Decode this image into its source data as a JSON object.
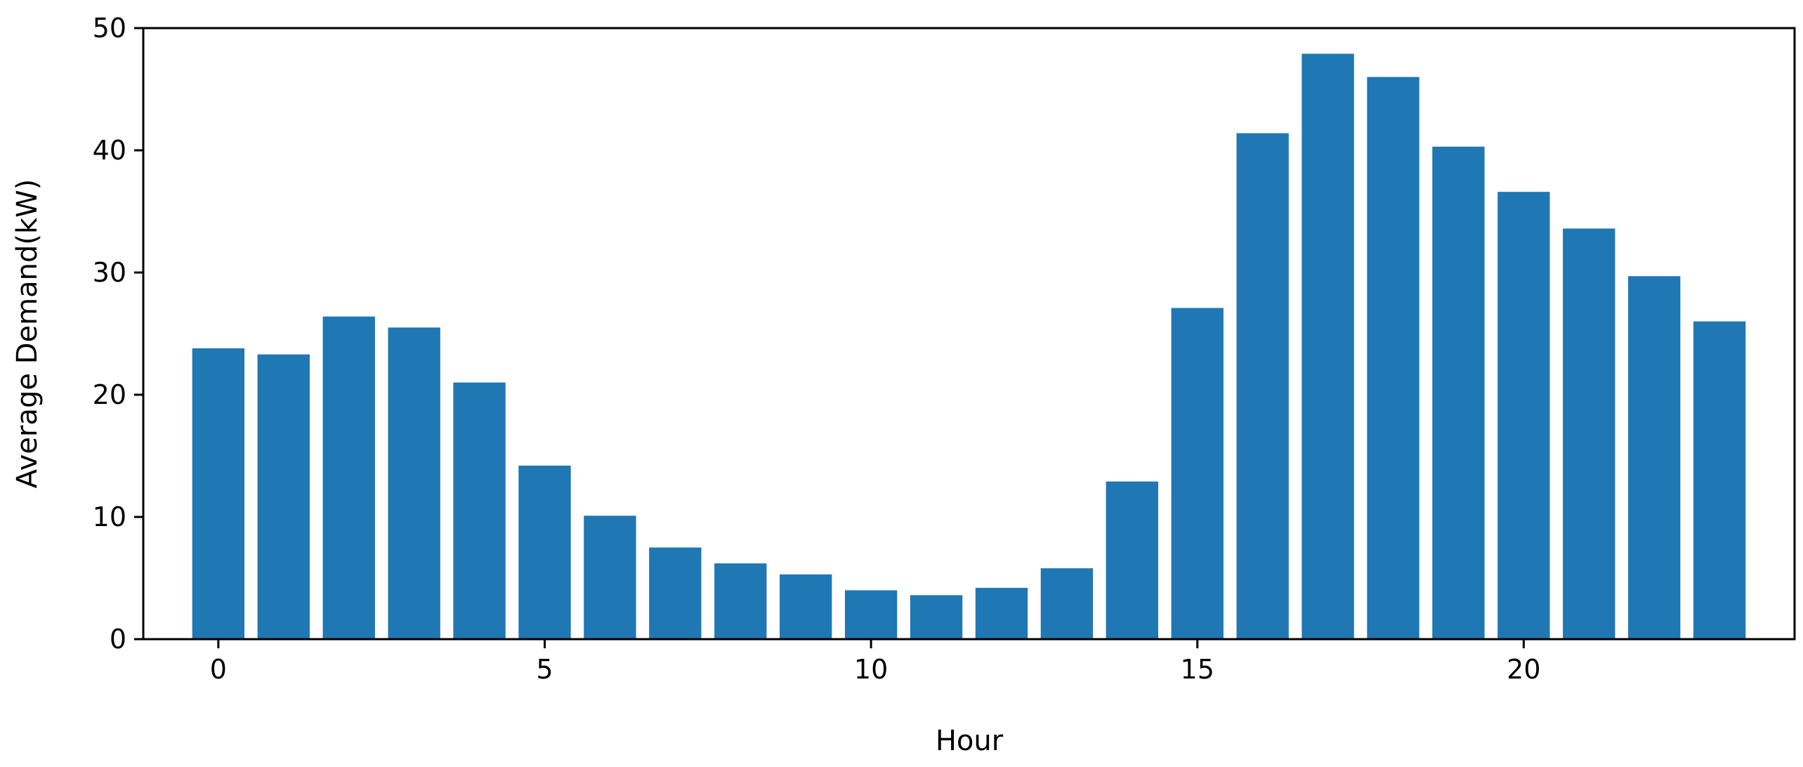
{
  "chart_data": {
    "type": "bar",
    "title": "",
    "xlabel": "Hour",
    "ylabel": "Average Demand(kW)",
    "x": [
      0,
      1,
      2,
      3,
      4,
      5,
      6,
      7,
      8,
      9,
      10,
      11,
      12,
      13,
      14,
      15,
      16,
      17,
      18,
      19,
      20,
      21,
      22,
      23
    ],
    "values": [
      23.8,
      23.3,
      26.4,
      25.5,
      21.0,
      14.2,
      10.1,
      7.5,
      6.2,
      5.3,
      4.0,
      3.6,
      4.2,
      5.8,
      12.9,
      27.1,
      41.4,
      47.9,
      46.0,
      40.3,
      36.6,
      33.6,
      29.7,
      26.0
    ],
    "xlim": [
      -1.15,
      24.15
    ],
    "ylim": [
      0,
      50
    ],
    "xticks": [
      0,
      5,
      10,
      15,
      20
    ],
    "yticks": [
      0,
      10,
      20,
      30,
      40,
      50
    ],
    "bar_color": "#1f77b4",
    "grid": false,
    "legend": "none"
  }
}
